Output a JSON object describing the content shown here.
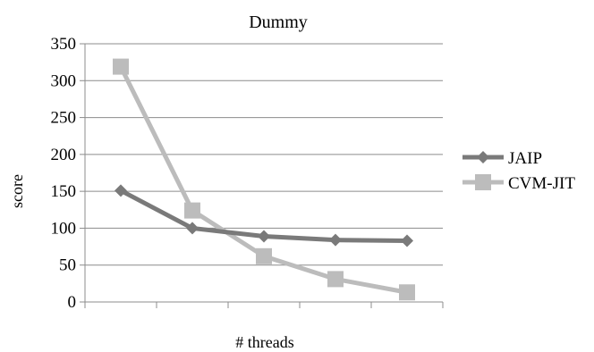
{
  "chart_data": {
    "type": "line",
    "title": "Dummy",
    "xlabel": "# threads",
    "ylabel": "score",
    "ylim": [
      0,
      350
    ],
    "yticks": [
      0,
      50,
      100,
      150,
      200,
      250,
      300,
      350
    ],
    "categories": [
      "",
      "",
      "",
      "",
      ""
    ],
    "grid": true,
    "legend": "right",
    "series": [
      {
        "name": "JAIP",
        "values": [
          151,
          100,
          89,
          84,
          83
        ],
        "color": "#7a7a7a",
        "marker": "diamond"
      },
      {
        "name": "CVM-JIT",
        "values": [
          319,
          124,
          62,
          31,
          13
        ],
        "color": "#bcbcbc",
        "marker": "square"
      }
    ]
  }
}
